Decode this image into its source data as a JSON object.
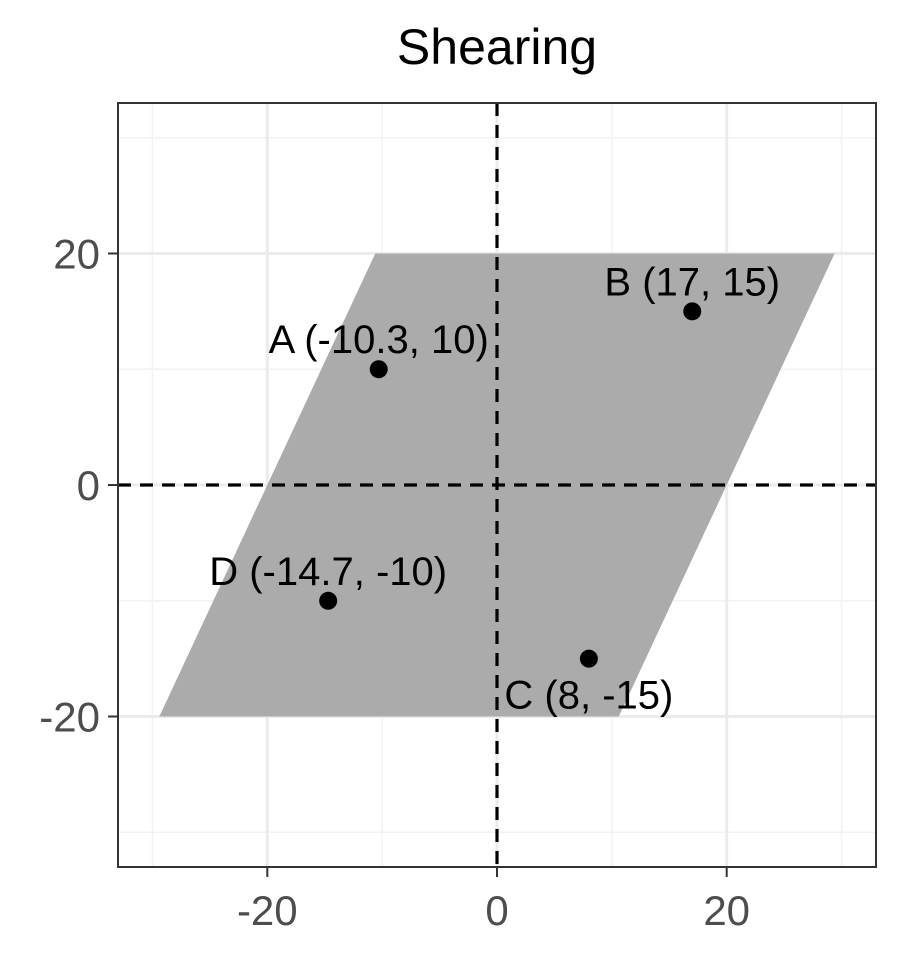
{
  "chart_data": {
    "type": "scatter",
    "title": "Shearing",
    "xlabel": "",
    "ylabel": "",
    "xlim": [
      -33,
      33
    ],
    "ylim": [
      -33,
      33
    ],
    "x_ticks": [
      -20,
      0,
      20
    ],
    "y_ticks": [
      -20,
      0,
      20
    ],
    "x_tick_labels": [
      "-20",
      "0",
      "20"
    ],
    "y_tick_labels": [
      "-20",
      "0",
      "20"
    ],
    "minor_grid": [
      -30,
      -10,
      10,
      30
    ],
    "grid": true,
    "reference_lines": {
      "x": 0,
      "y": 0,
      "style": "dashed"
    },
    "polygon": {
      "color": "#ababab",
      "vertices": [
        [
          -10.6,
          20
        ],
        [
          29.4,
          20
        ],
        [
          10.6,
          -20
        ],
        [
          -29.4,
          -20
        ]
      ]
    },
    "points": [
      {
        "label": "A (-10.3, 10)",
        "x": -10.3,
        "y": 10
      },
      {
        "label": "B (17, 15)",
        "x": 17,
        "y": 15
      },
      {
        "label": "C (8, -15)",
        "x": 8,
        "y": -15
      },
      {
        "label": "D (-14.7, -10)",
        "x": -14.7,
        "y": -10
      }
    ],
    "point_color": "#000000"
  }
}
